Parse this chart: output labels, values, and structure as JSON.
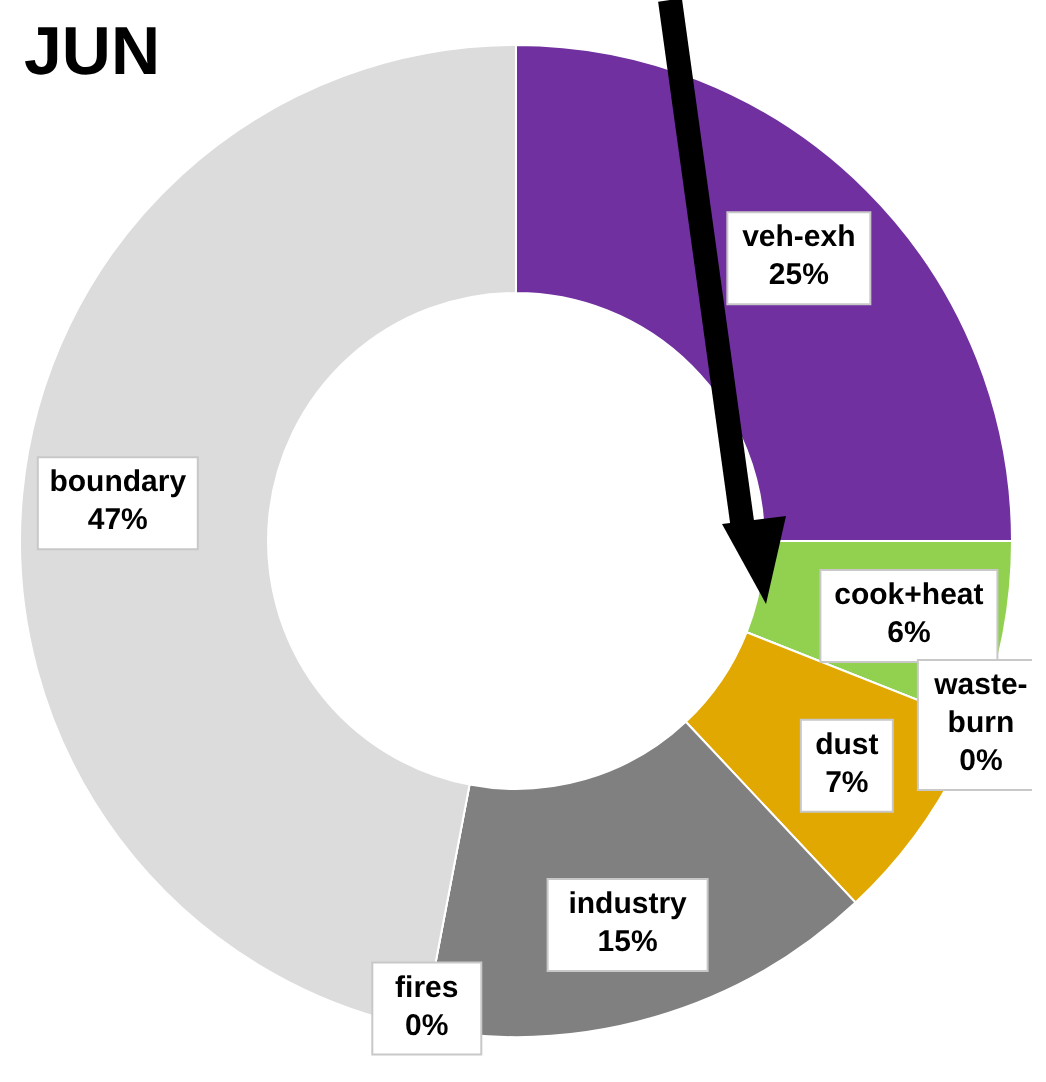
{
  "chart_data": {
    "type": "donut",
    "title": "JUN",
    "categories": [
      "veh-exh",
      "cook+heat",
      "waste-burn",
      "dust",
      "industry",
      "fires",
      "boundary"
    ],
    "values": [
      25,
      6,
      0,
      7,
      15,
      0,
      47
    ],
    "colors": [
      "#7030a0",
      "#92d050",
      "#c00000",
      "#e0a800",
      "#808080",
      "#ff6600",
      "#dcdcdc"
    ],
    "value_labels": [
      "25%",
      "6%",
      "0%",
      "7%",
      "15%",
      "0%",
      "47%"
    ],
    "legend": false
  }
}
